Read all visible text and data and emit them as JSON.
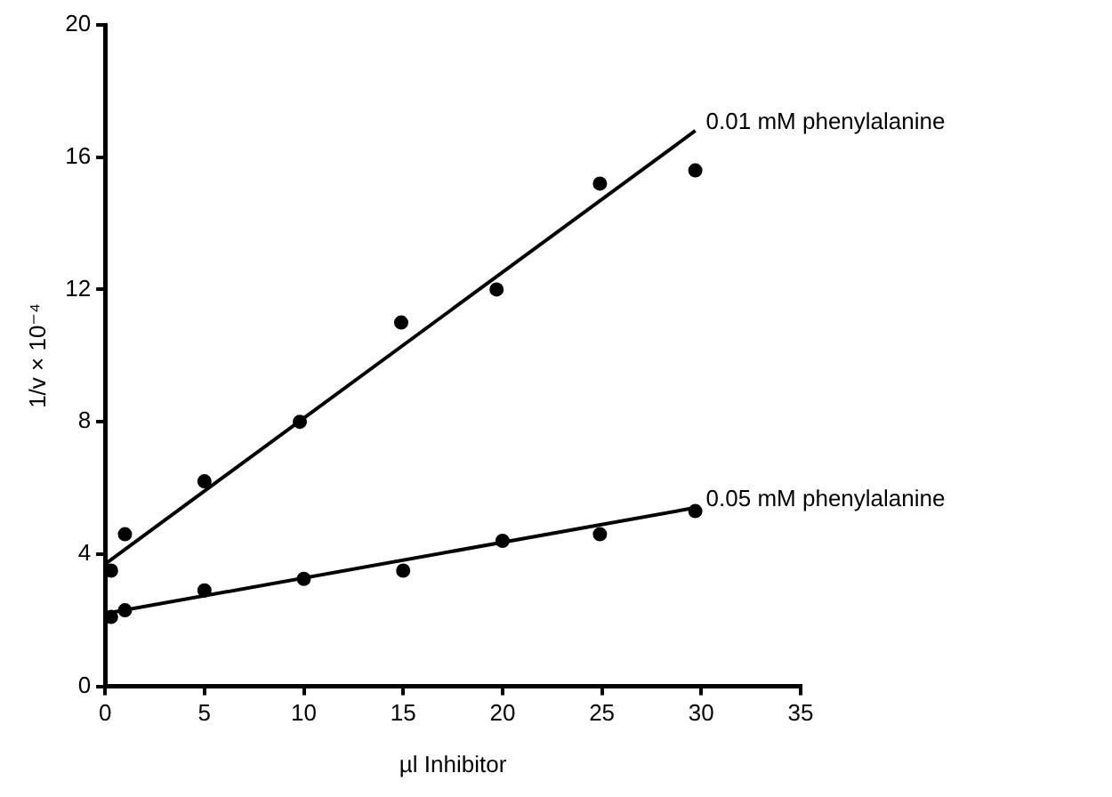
{
  "chart_data": {
    "type": "scatter",
    "xlabel": "µl Inhibitor",
    "ylabel": "1/v × 10⁻⁴",
    "xlim": [
      0,
      35
    ],
    "xticks": [
      0,
      5,
      10,
      15,
      20,
      25,
      30,
      35
    ],
    "ylim": [
      0,
      20
    ],
    "yticks": [
      0,
      4,
      8,
      12,
      16,
      20
    ],
    "grid": false,
    "legend": false,
    "marker": "circle",
    "series": [
      {
        "color": "#000000",
        "x": [
          0.3,
          1,
          5,
          9.8,
          14.9,
          19.7,
          24.9,
          29.7
        ],
        "values": [
          3.5,
          4.6,
          6.2,
          8.0,
          11.0,
          12.0,
          15.2,
          15.6
        ]
      },
      {
        "color": "#000000",
        "x": [
          0.3,
          1,
          5,
          10,
          15,
          20,
          24.9,
          29.7
        ],
        "values": [
          2.1,
          2.3,
          2.9,
          3.25,
          3.5,
          4.4,
          4.6,
          5.3
        ]
      },
      {
        "type": "line",
        "name": "0.01 mM phenylalanine",
        "color": "#000000",
        "marker": "none",
        "x": [
          0,
          29.7
        ],
        "values": [
          3.7,
          16.8
        ]
      },
      {
        "type": "line",
        "name": "0.05 mM phenylalanine",
        "color": "#000000",
        "marker": "none",
        "x": [
          0,
          29.7
        ],
        "values": [
          2.2,
          5.4
        ]
      }
    ]
  }
}
